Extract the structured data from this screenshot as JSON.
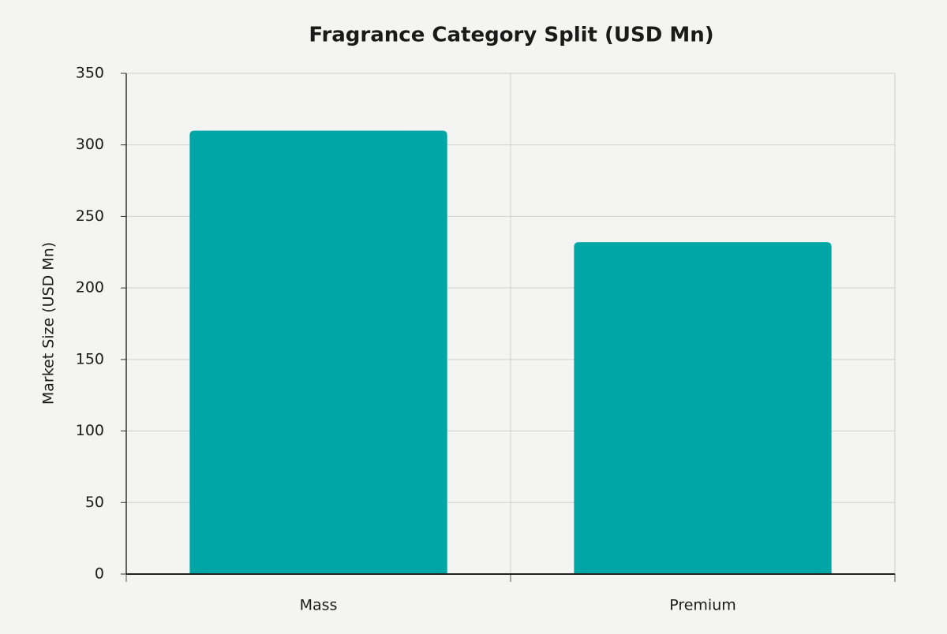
{
  "chart_data": {
    "type": "bar",
    "title": "Fragrance Category Split (USD Mn)",
    "y_label": "Market Size (USD Mn)",
    "categories": [
      "Mass",
      "Premium"
    ],
    "values": [
      310,
      232
    ],
    "color": "#00a6a6",
    "ylim": [
      0,
      350
    ],
    "yticks": [
      0,
      50,
      100,
      150,
      200,
      250,
      300,
      350
    ],
    "grid": true
  }
}
